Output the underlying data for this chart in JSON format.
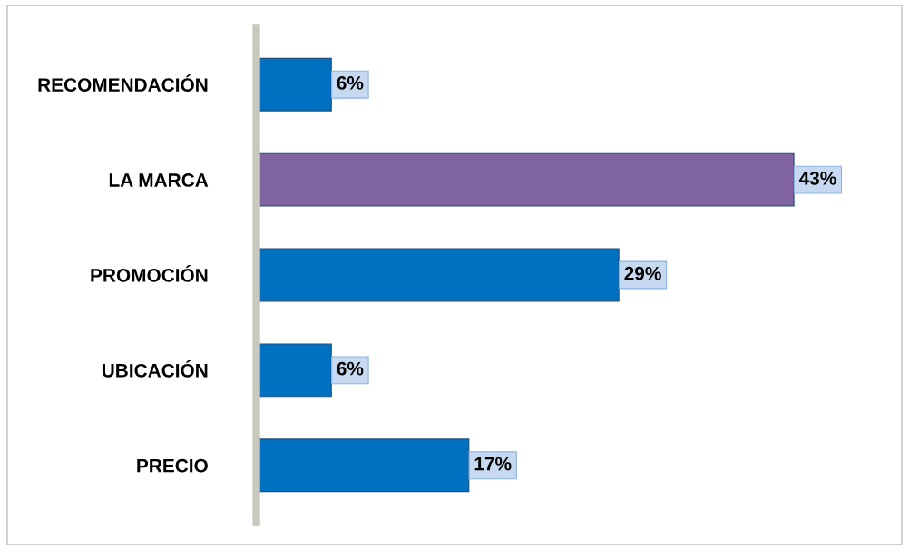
{
  "chart_data": {
    "type": "bar",
    "orientation": "horizontal",
    "categories": [
      "RECOMENDACIÓN",
      "LA MARCA",
      "PROMOCIÓN",
      "UBICACIÓN",
      "PRECIO"
    ],
    "values": [
      6,
      43,
      29,
      6,
      17
    ],
    "colors": [
      "#0070c0",
      "#8064a2",
      "#0070c0",
      "#0070c0",
      "#0070c0"
    ],
    "value_labels": [
      "6%",
      "43%",
      "29%",
      "6%",
      "17%"
    ],
    "grid": false,
    "legend": false
  }
}
